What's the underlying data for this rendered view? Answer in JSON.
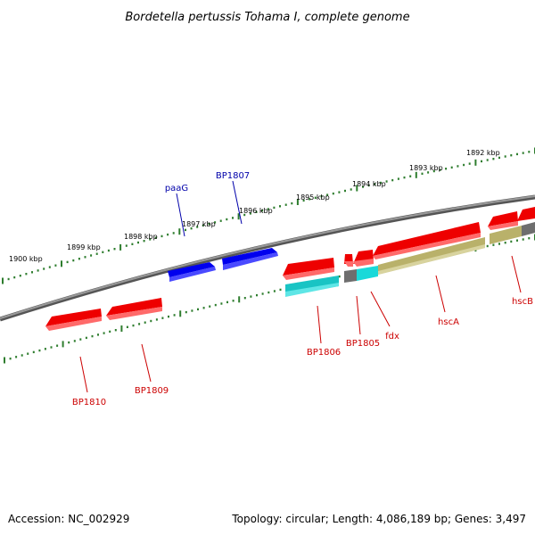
{
  "title": "Bordetella pertussis Tohama I, complete genome",
  "footer": {
    "accession": "Accession: NC_002929",
    "summary": "Topology: circular; Length: 4,086,189 bp; Genes: 3,497"
  },
  "colors": {
    "backbone": "#7a7a7a",
    "ticks": "#2e7d2e",
    "forward_gene": "#0000dd",
    "reverse_gene": "#ee0000",
    "cyan_feature": "#19d0d0",
    "olive_feature": "#c2bb72",
    "grey_feature": "#6e6e6e",
    "label_forward": "#0000aa",
    "label_reverse": "#cc0000"
  },
  "ticks": {
    "outer": [
      "1900 kbp",
      "1899 kbp",
      "1898 kbp",
      "1897 kbp",
      "1896 kbp",
      "1895 kbp",
      "1894 kbp",
      "1893 kbp",
      "1892 kbp"
    ]
  },
  "genes": {
    "forward": [
      {
        "name": "paaG",
        "strand": "+"
      },
      {
        "name": "BP1807",
        "strand": "+"
      }
    ],
    "reverse": [
      {
        "name": "BP1810",
        "strand": "-"
      },
      {
        "name": "BP1809",
        "strand": "-"
      },
      {
        "name": "BP1806",
        "strand": "-"
      },
      {
        "name": "BP1805",
        "strand": "-"
      },
      {
        "name": "fdx",
        "strand": "-"
      },
      {
        "name": "hscA",
        "strand": "-"
      },
      {
        "name": "hscB",
        "strand": "-"
      }
    ]
  }
}
